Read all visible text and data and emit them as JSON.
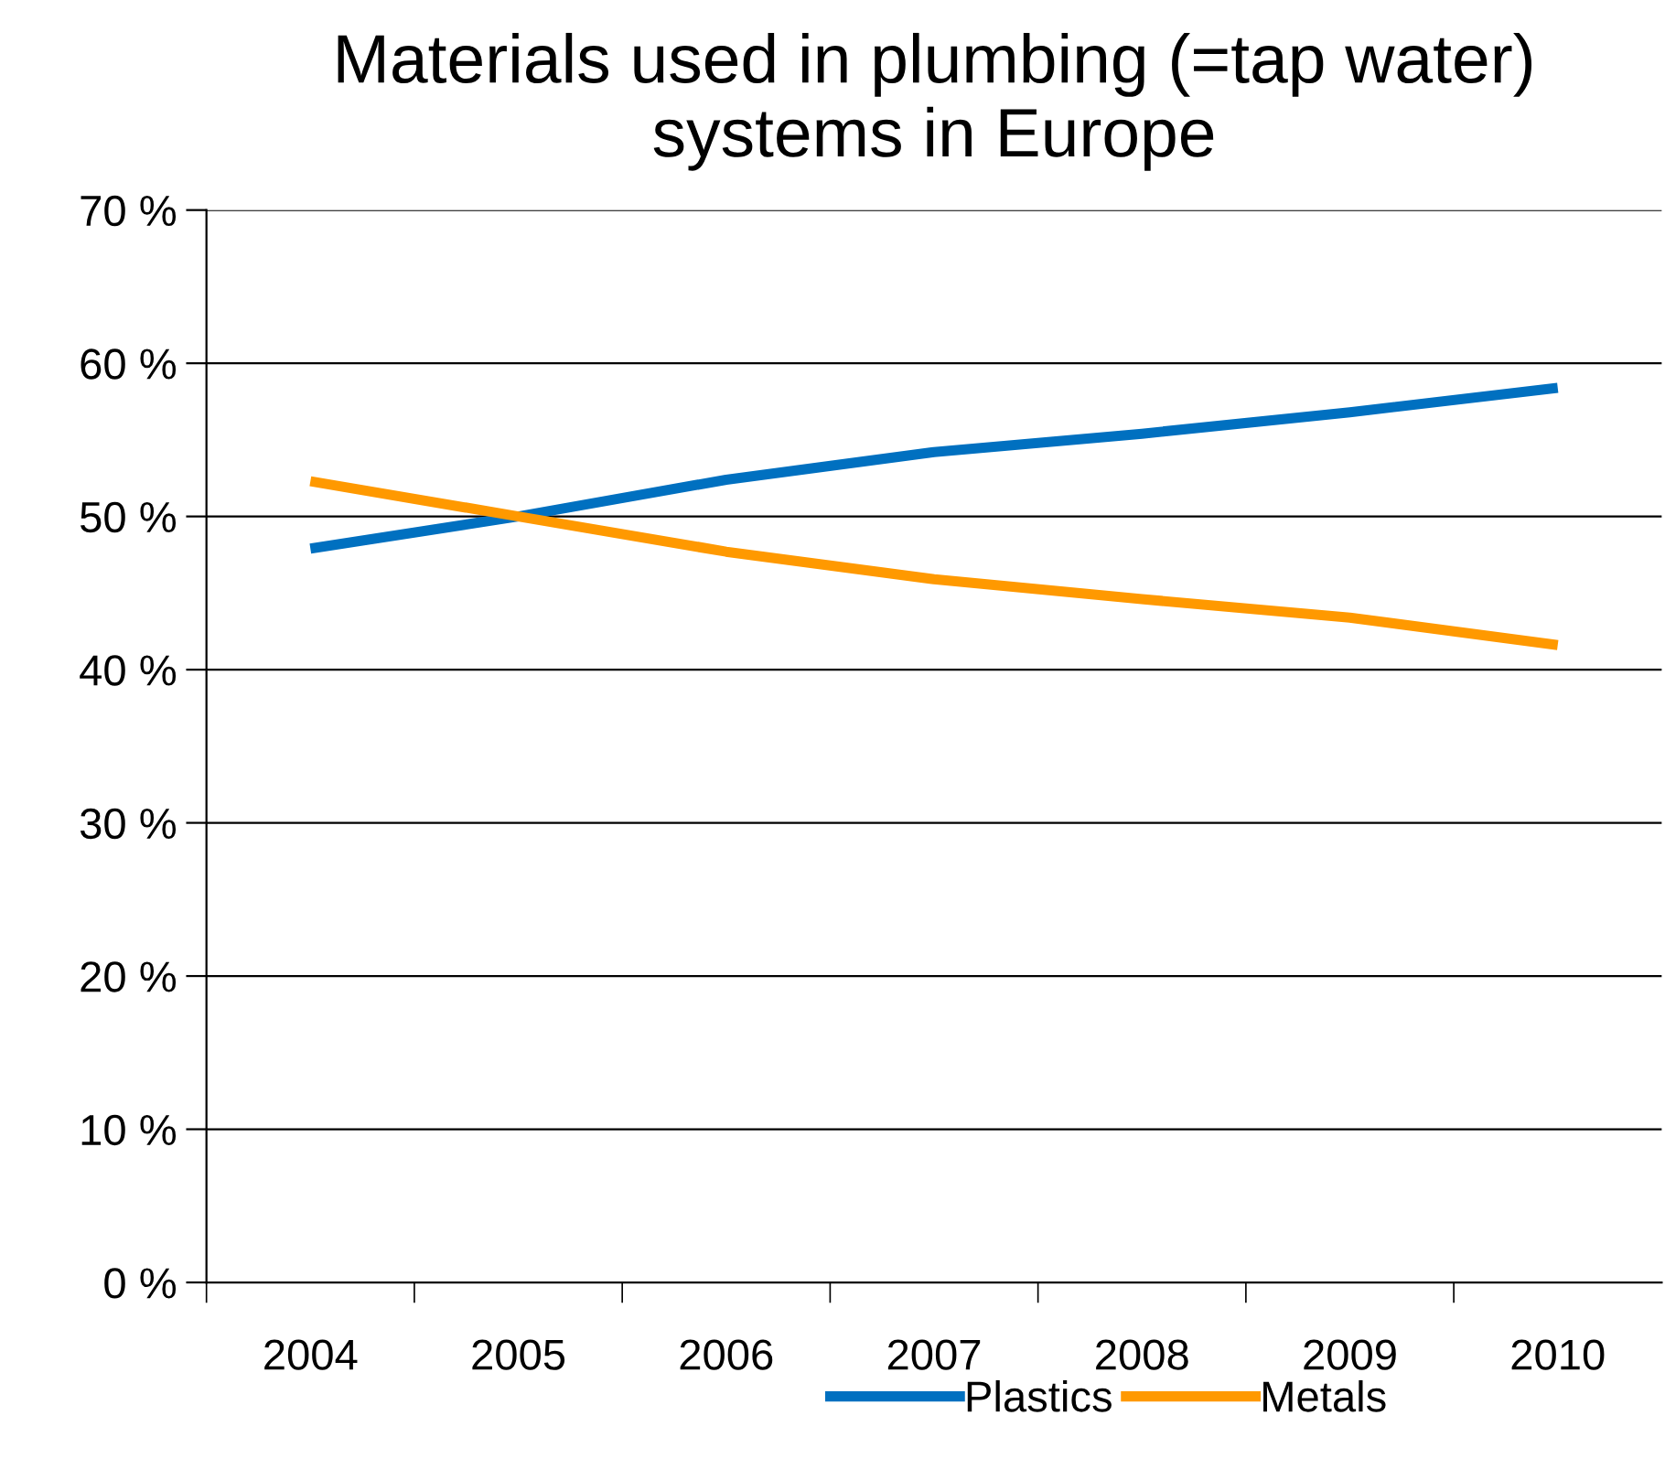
{
  "chart_data": {
    "type": "line",
    "title": "Materials used in plumbing (=tap water) systems in Europe",
    "categories": [
      "2004",
      "2005",
      "2006",
      "2007",
      "2008",
      "2009",
      "2010"
    ],
    "series": [
      {
        "name": "Plastics",
        "color": "#0070c0",
        "values": [
          47.9,
          50.0,
          52.4,
          54.2,
          55.4,
          56.8,
          58.4
        ]
      },
      {
        "name": "Metals",
        "color": "#ff9900",
        "values": [
          52.3,
          50.0,
          47.7,
          45.9,
          44.6,
          43.4,
          41.6
        ]
      }
    ],
    "ylim": [
      0,
      70
    ],
    "yticks": [
      {
        "value": 0,
        "label": "0 %"
      },
      {
        "value": 10,
        "label": "10 %"
      },
      {
        "value": 20,
        "label": "20 %"
      },
      {
        "value": 30,
        "label": "30 %"
      },
      {
        "value": 40,
        "label": "40 %"
      },
      {
        "value": 50,
        "label": "50 %"
      },
      {
        "value": 60,
        "label": "60 %"
      },
      {
        "value": 70,
        "label": "70 %"
      }
    ],
    "grid": "y",
    "legend": "bottom",
    "marker": "none",
    "line_style": "solid"
  }
}
